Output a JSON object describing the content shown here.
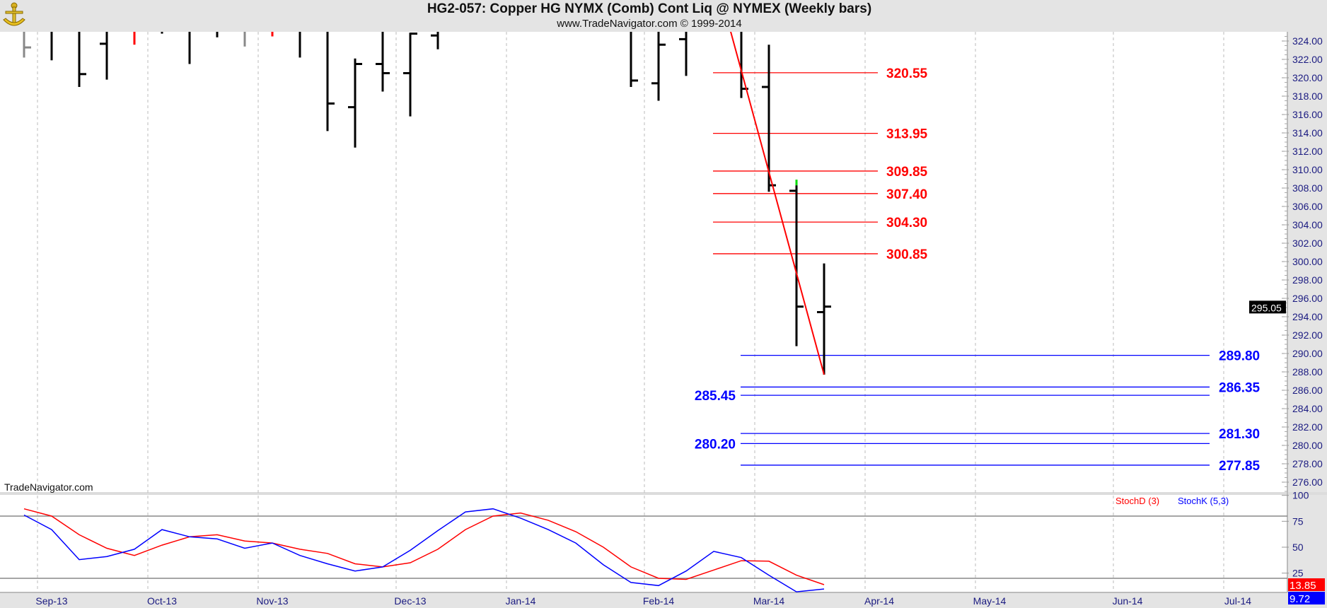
{
  "header": {
    "title": "HG2-057:  Copper HG NYMX (Comb) Cont Liq @ NYMEX  (Weekly bars)",
    "subtitle": "www.TradeNavigator.com © 1999-2014",
    "logo_icon": "sextant-logo-icon"
  },
  "watermark": "TradeNavigator.com",
  "colors": {
    "up_bar": "#000000",
    "gray_bar": "#888888",
    "red_bar": "#ff0000",
    "new_high_tick": "#00dd00",
    "fib_red": "#ff0000",
    "fib_blue": "#0000ff",
    "stoch_d": "#ff0000",
    "stoch_k": "#0000ff",
    "axis_text": "#1a1a80"
  },
  "chart_data": [
    {
      "type": "ohlc",
      "panel": "price",
      "ylim": [
        275,
        325
      ],
      "y_ticks": [
        "276.00",
        "278.00",
        "280.00",
        "282.00",
        "284.00",
        "286.00",
        "288.00",
        "290.00",
        "292.00",
        "294.00",
        "296.00",
        "298.00",
        "300.00",
        "302.00",
        "304.00",
        "306.00",
        "308.00",
        "310.00",
        "312.00",
        "314.00",
        "316.00",
        "318.00",
        "320.00",
        "322.00",
        "324.00"
      ],
      "x_ticks": [
        {
          "label": "Sep-13",
          "date": "2013-09-01"
        },
        {
          "label": "Oct-13",
          "date": "2013-10-01"
        },
        {
          "label": "Nov-13",
          "date": "2013-11-01"
        },
        {
          "label": "Dec-13",
          "date": "2013-12-01"
        },
        {
          "label": "Jan-14",
          "date": "2014-01-01"
        },
        {
          "label": "Feb-14",
          "date": "2014-02-01"
        },
        {
          "label": "Mar-14",
          "date": "2014-03-01"
        },
        {
          "label": "Apr-14",
          "date": "2014-04-01"
        },
        {
          "label": "May-14",
          "date": "2014-05-01"
        },
        {
          "label": "Jun-14",
          "date": "2014-06-01"
        },
        {
          "label": "Jul-14",
          "date": "2014-07-01"
        }
      ],
      "grid": "vertical dashed at month starts",
      "bars": [
        {
          "date": "2013-08-26",
          "high": null,
          "low": 322.2,
          "open": null,
          "close": 323.3,
          "color": "gray"
        },
        {
          "date": "2013-09-02",
          "high": null,
          "low": 321.9,
          "open": null,
          "close": null,
          "color": "black"
        },
        {
          "date": "2013-09-09",
          "high": null,
          "low": 319.0,
          "open": null,
          "close": 320.4,
          "color": "black"
        },
        {
          "date": "2013-09-16",
          "high": null,
          "low": 319.8,
          "open": 323.7,
          "close": null,
          "color": "black"
        },
        {
          "date": "2013-09-23",
          "high": null,
          "low": 323.6,
          "open": null,
          "close": null,
          "color": "red"
        },
        {
          "date": "2013-09-30",
          "high": null,
          "low": 324.8,
          "open": null,
          "close": null,
          "color": "black"
        },
        {
          "date": "2013-10-07",
          "high": null,
          "low": 321.5,
          "open": null,
          "close": null,
          "color": "black"
        },
        {
          "date": "2013-10-14",
          "high": null,
          "low": 324.4,
          "open": null,
          "close": null,
          "color": "black"
        },
        {
          "date": "2013-10-21",
          "high": null,
          "low": 323.4,
          "open": null,
          "close": null,
          "color": "gray"
        },
        {
          "date": "2013-10-28",
          "high": null,
          "low": 324.5,
          "open": null,
          "close": null,
          "color": "red"
        },
        {
          "date": "2013-11-04",
          "high": null,
          "low": 322.2,
          "open": null,
          "close": null,
          "color": "black"
        },
        {
          "date": "2013-11-11",
          "high": null,
          "low": 314.2,
          "open": null,
          "close": 317.2,
          "color": "black"
        },
        {
          "date": "2013-11-18",
          "high": 322.1,
          "low": 312.4,
          "open": 316.8,
          "close": 321.5,
          "color": "black"
        },
        {
          "date": "2013-11-25",
          "high": null,
          "low": 318.5,
          "open": 321.5,
          "close": 320.5,
          "color": "black"
        },
        {
          "date": "2013-12-02",
          "high": 324.9,
          "low": 315.8,
          "open": 320.5,
          "close": 324.8,
          "color": "black"
        },
        {
          "date": "2013-12-09",
          "high": null,
          "low": 323.1,
          "open": 324.6,
          "close": null,
          "color": "black"
        },
        {
          "date": "2014-01-27",
          "high": null,
          "low": 319.0,
          "open": null,
          "close": 319.7,
          "color": "black"
        },
        {
          "date": "2014-02-03",
          "high": null,
          "low": 317.5,
          "open": 319.4,
          "close": 323.6,
          "color": "black"
        },
        {
          "date": "2014-02-10",
          "high": null,
          "low": 320.2,
          "open": 324.2,
          "close": null,
          "color": "black"
        },
        {
          "date": "2014-02-24",
          "high": null,
          "low": 317.8,
          "open": null,
          "close": 318.8,
          "color": "black"
        },
        {
          "date": "2014-03-03",
          "high": 323.6,
          "low": 307.6,
          "open": 319.0,
          "close": 308.3,
          "color": "black"
        },
        {
          "date": "2014-03-10",
          "high": 308.3,
          "low": 290.8,
          "open": 307.7,
          "close": 295.1,
          "color": "black",
          "new_high_tick": true
        },
        {
          "date": "2014-03-17",
          "high": 299.8,
          "low": 287.7,
          "open": 294.5,
          "close": 295.1,
          "color": "black"
        }
      ],
      "last_price_label": "295.05",
      "last_price": 295.05,
      "trendline": {
        "color": "red",
        "start": {
          "date": "2014-02-17",
          "price": 331.8
        },
        "end": {
          "date": "2014-03-17",
          "price": 287.7
        }
      },
      "fib_levels_red": {
        "from": "2014-02-12",
        "to": "2014-04-03",
        "levels": [
          {
            "value": 320.55,
            "label": "320.55"
          },
          {
            "value": 313.95,
            "label": "313.95"
          },
          {
            "value": 309.85,
            "label": "309.85"
          },
          {
            "value": 307.4,
            "label": "307.40"
          },
          {
            "value": 304.3,
            "label": "304.30"
          },
          {
            "value": 300.85,
            "label": "300.85"
          }
        ]
      },
      "fib_levels_blue": {
        "from": "2014-02-24",
        "to": "2014-06-23",
        "levels": [
          {
            "value": 289.8,
            "label": "289.80",
            "side": "right"
          },
          {
            "value": 286.35,
            "label": "286.35",
            "side": "right"
          },
          {
            "value": 285.45,
            "label": "285.45",
            "side": "left"
          },
          {
            "value": 281.3,
            "label": "281.30",
            "side": "right"
          },
          {
            "value": 280.2,
            "label": "280.20",
            "side": "left"
          },
          {
            "value": 277.85,
            "label": "277.85",
            "side": "right"
          }
        ]
      }
    },
    {
      "type": "line",
      "panel": "stochastic",
      "ylim": [
        0,
        100
      ],
      "y_ticks": [
        "100",
        "75",
        "50",
        "25"
      ],
      "reference_lines": [
        80,
        20
      ],
      "start_date": "2013-08-26",
      "interval": "weekly",
      "series": [
        {
          "name": "StochD (3)",
          "color": "#ff0000",
          "last_label": "13.85",
          "values": [
            87,
            80,
            62,
            49,
            42,
            52,
            60,
            62,
            56,
            54,
            48,
            44,
            34,
            31,
            35,
            48,
            67,
            80,
            83,
            76,
            65,
            50,
            31,
            20,
            19,
            28,
            37,
            36.5,
            23,
            13.85
          ]
        },
        {
          "name": "StochK (5,3)",
          "color": "#0000ff",
          "last_label": "9.72",
          "values": [
            81,
            67,
            38,
            41,
            48,
            67,
            60,
            58,
            49,
            54,
            42,
            34,
            27,
            31,
            47,
            66,
            84,
            87,
            78,
            67,
            54,
            33,
            16,
            13,
            27,
            46,
            40,
            23,
            7,
            9.72
          ]
        }
      ],
      "legend": "top-right"
    }
  ]
}
